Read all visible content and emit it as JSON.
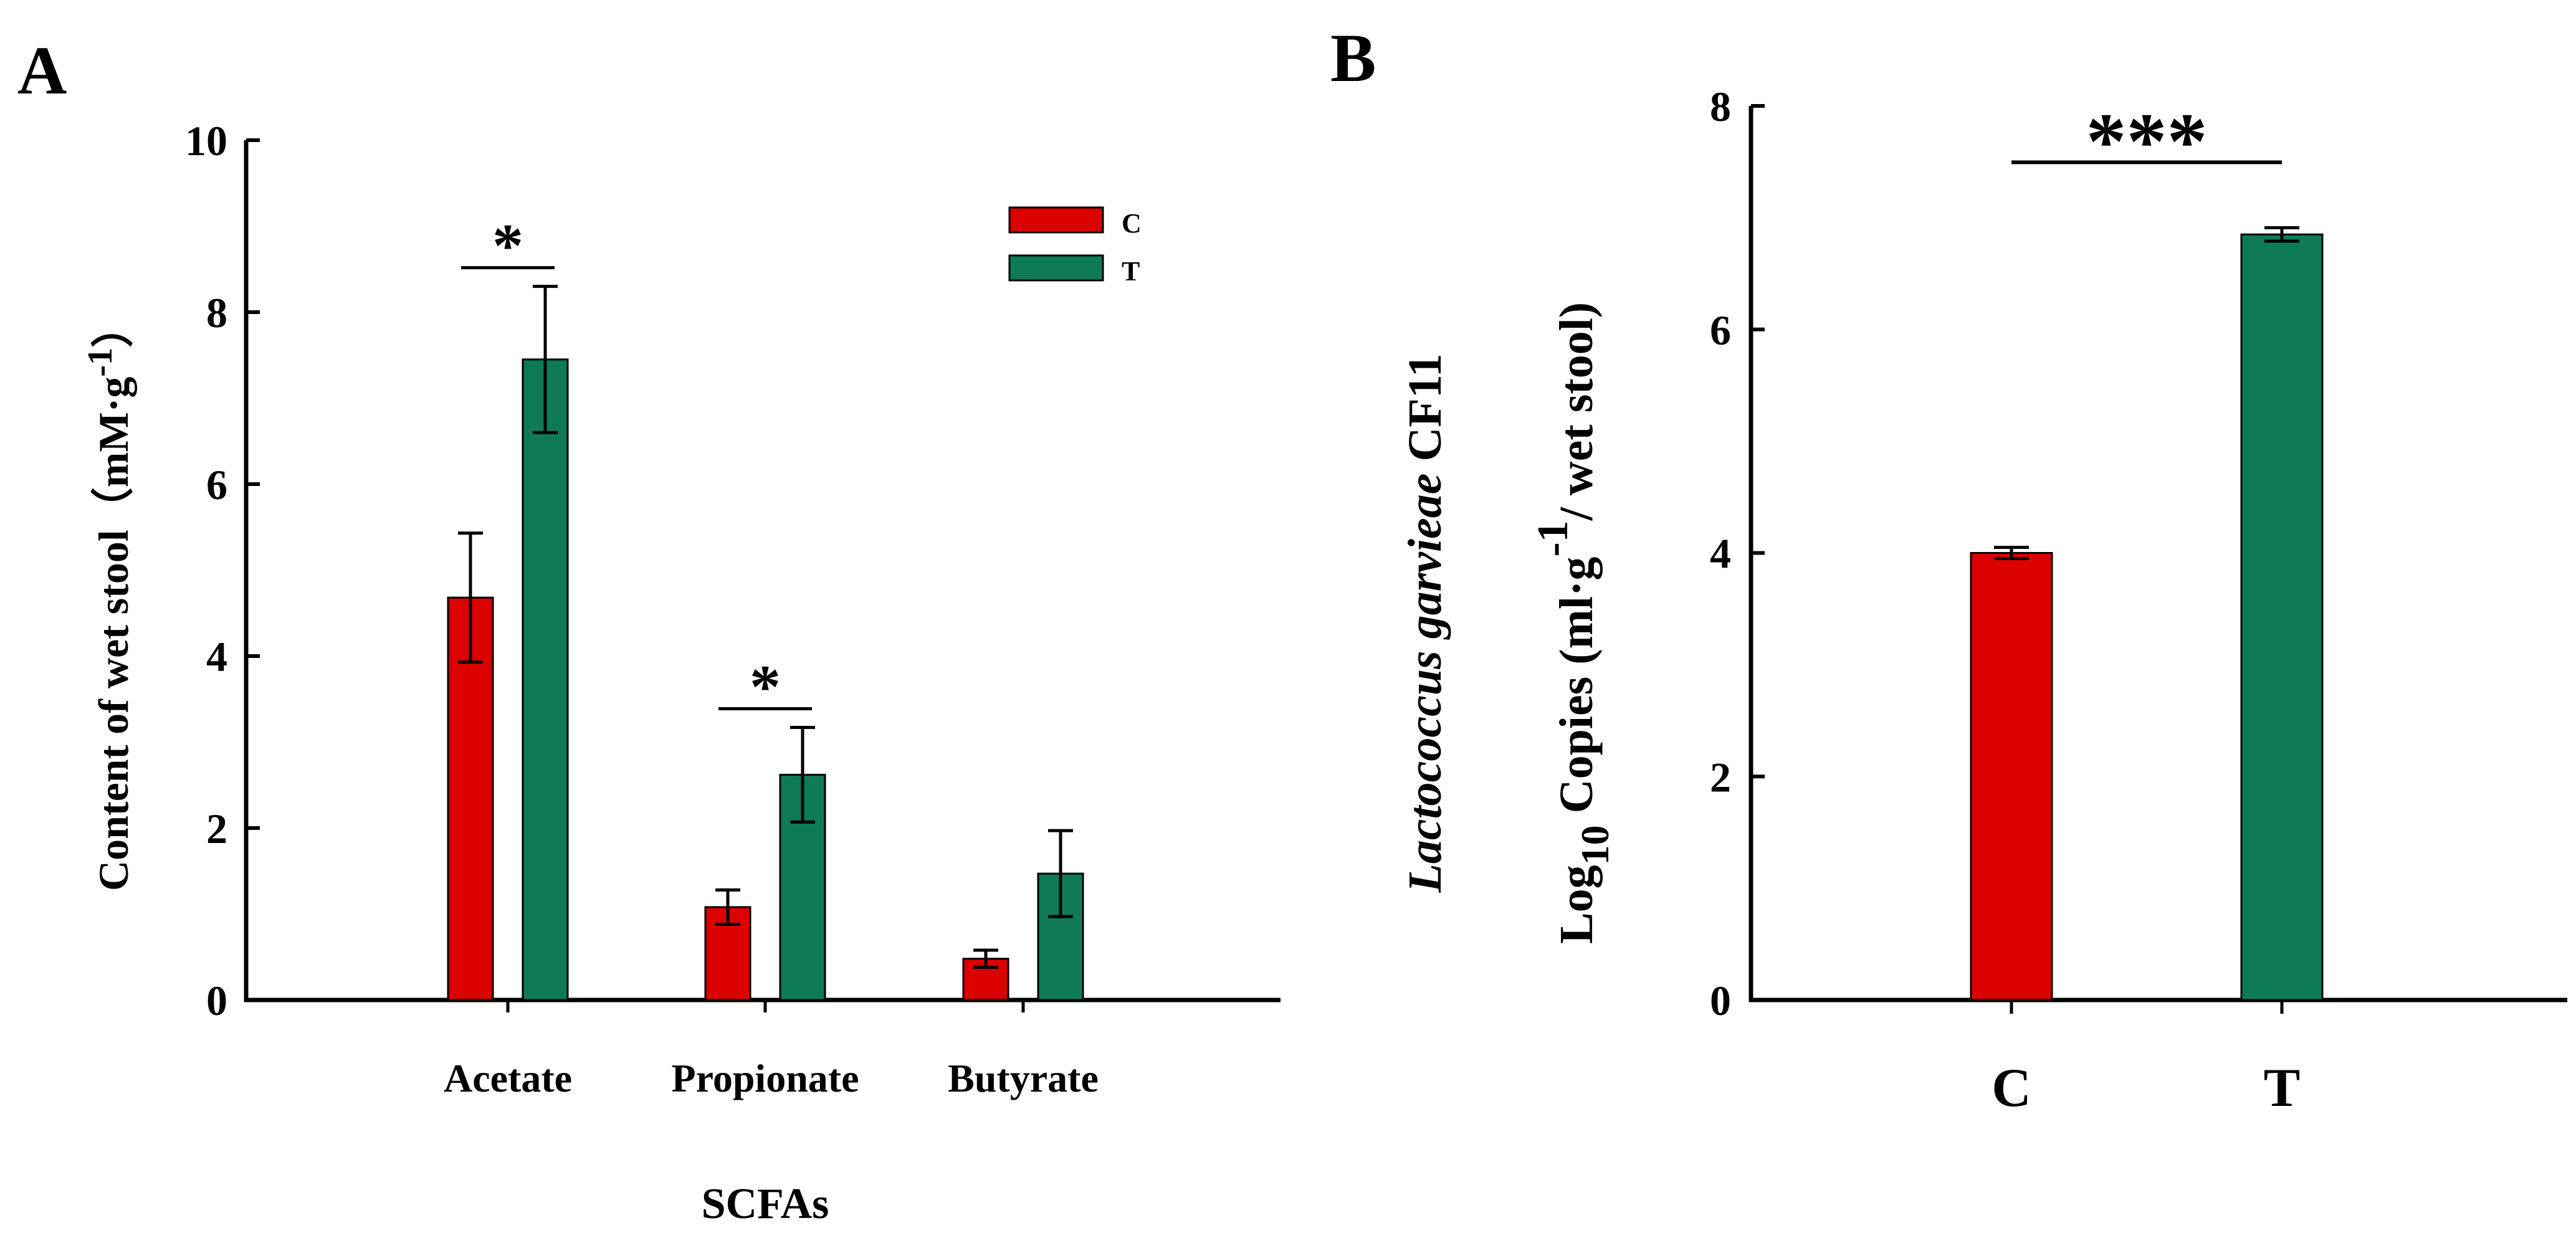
{
  "panel_a_label": "A",
  "panel_b_label": "B",
  "colors": {
    "C": "#dd0000",
    "T": "#0f7a58",
    "axis": "#000000"
  },
  "chart_data": [
    {
      "type": "bar",
      "panel": "A",
      "title": "",
      "xlabel": "SCFAs",
      "ylabel": "Content of wet stool（mM·g⁻¹）",
      "ylabel_parts": {
        "main": "Content of wet stool（mM·g",
        "superscript": "-1",
        "close": "）"
      },
      "ylim": [
        0,
        10
      ],
      "yticks": [
        0,
        2,
        4,
        6,
        8,
        10
      ],
      "categories": [
        "Acetate",
        "Propionate",
        "Butyrate"
      ],
      "series": [
        {
          "name": "C",
          "values": [
            4.68,
            1.08,
            0.48
          ],
          "errors": [
            0.75,
            0.2,
            0.1
          ]
        },
        {
          "name": "T",
          "values": [
            7.45,
            2.62,
            1.47
          ],
          "errors": [
            0.85,
            0.55,
            0.5
          ]
        }
      ],
      "legend": {
        "position": "top-right",
        "entries": [
          "C",
          "T"
        ]
      },
      "annotations": [
        {
          "category": "Acetate",
          "text": "*"
        },
        {
          "category": "Propionate",
          "text": "*"
        }
      ]
    },
    {
      "type": "bar",
      "panel": "B",
      "title": "",
      "xlabel": "",
      "ylabel_line1": "Lactococcus garvieae CF11",
      "ylabel_line1_parts": {
        "italic": "Lactococcus garvieae",
        "plain": " CF11"
      },
      "ylabel_line2": "Log10 Copies (ml·g-1/ wet stool)",
      "ylabel_line2_parts": {
        "log": "Log",
        "log_sub": "10",
        "mid": " Copies (ml·g",
        "sup": "-1",
        "end": "/ wet stool)"
      },
      "ylim": [
        0,
        8
      ],
      "yticks": [
        0,
        2,
        4,
        6,
        8
      ],
      "categories": [
        "C",
        "T"
      ],
      "values": [
        4.0,
        6.85
      ],
      "errors": [
        0.05,
        0.06
      ],
      "annotations": [
        {
          "text": "***"
        }
      ]
    }
  ]
}
